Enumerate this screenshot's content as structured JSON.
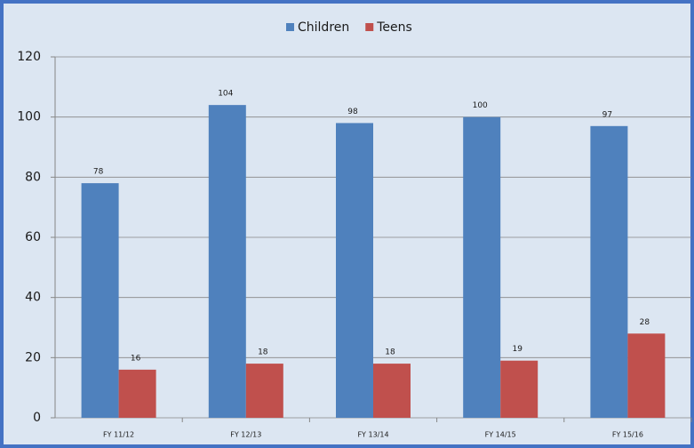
{
  "chart_data": {
    "type": "bar",
    "categories": [
      "FY 11/12",
      "FY 12/13",
      "FY 13/14",
      "FY 14/15",
      "FY 15/16"
    ],
    "series": [
      {
        "name": "Children",
        "color": "#4f81bd",
        "values": [
          78,
          104,
          98,
          100,
          97
        ]
      },
      {
        "name": "Teens",
        "color": "#c0504d",
        "values": [
          16,
          18,
          18,
          19,
          28
        ]
      }
    ],
    "ylim": [
      0,
      120
    ],
    "yticks": [
      0,
      20,
      40,
      60,
      80,
      100,
      120
    ],
    "grid": true,
    "legend": "top"
  }
}
